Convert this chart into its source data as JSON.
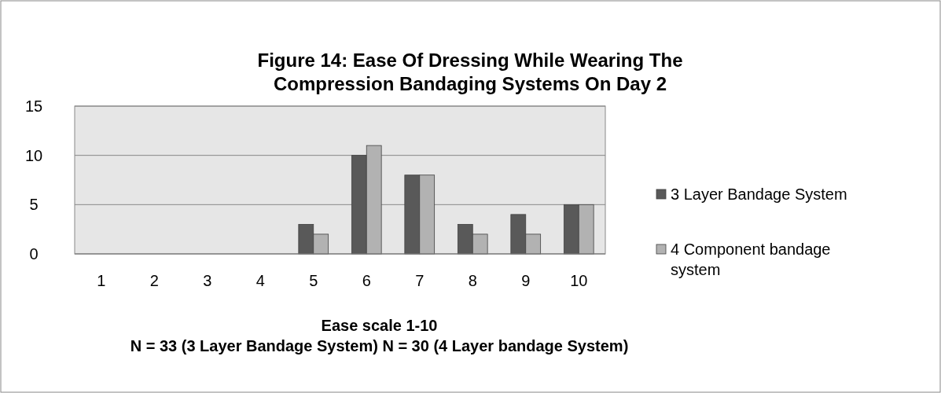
{
  "chart_data": {
    "type": "bar",
    "title": "Figure 14: Ease Of Dressing While Wearing The Compression Bandaging Systems On Day 2",
    "xlabel": "Ease scale 1-10",
    "annotations": [
      "N = 33 (3 Layer Bandage System) N = 30 (4 Layer bandage System)"
    ],
    "categories": [
      "1",
      "2",
      "3",
      "4",
      "5",
      "6",
      "7",
      "8",
      "9",
      "10"
    ],
    "series": [
      {
        "name": "3 Layer Bandage System",
        "color": "#595959",
        "values": [
          0,
          0,
          0,
          0,
          3,
          10,
          8,
          3,
          4,
          5
        ]
      },
      {
        "name": "4 Component bandage system",
        "color": "#b2b2b2",
        "values": [
          0,
          0,
          0,
          0,
          2,
          11,
          8,
          2,
          2,
          5
        ]
      }
    ],
    "ylim": [
      0,
      15
    ],
    "yticks": [
      0,
      5,
      10,
      15
    ],
    "grid": "y",
    "legend": "right"
  }
}
